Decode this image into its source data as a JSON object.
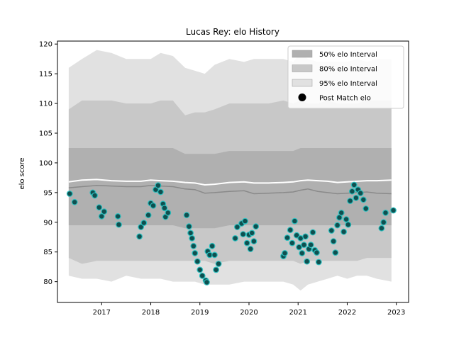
{
  "chart_data": {
    "type": "scatter",
    "title": "Lucas Rey: elo History",
    "xlabel": "",
    "ylabel": "elo score",
    "xlim": [
      2016.1,
      2023.25
    ],
    "ylim": [
      76.5,
      120.5
    ],
    "x_ticks": [
      2017,
      2018,
      2019,
      2020,
      2021,
      2022,
      2023
    ],
    "x_tick_labels": [
      "2017",
      "2018",
      "2019",
      "2020",
      "2021",
      "2022",
      "2023"
    ],
    "y_ticks": [
      80,
      85,
      90,
      95,
      100,
      105,
      110,
      115,
      120
    ],
    "y_tick_labels": [
      "80",
      "85",
      "90",
      "95",
      "100",
      "105",
      "110",
      "115",
      "120"
    ],
    "grid": false,
    "legend_position": "top-right",
    "legend": [
      {
        "label": "50% elo Interval",
        "kind": "band",
        "color": "#b0b0b0"
      },
      {
        "label": "80% elo Interval",
        "kind": "band",
        "color": "#c8c8c8"
      },
      {
        "label": "95% elo Interval",
        "kind": "band",
        "color": "#e1e1e1"
      },
      {
        "label": "Post Match elo",
        "kind": "marker",
        "color": "#000000"
      }
    ],
    "colors": {
      "band50": "#b0b0b0",
      "band80": "#c8c8c8",
      "band95": "#e1e1e1",
      "mean_line": "#8a8a8a",
      "upper_line": "#ffffff",
      "point_fill": "#0f4f4f",
      "point_edge": "#2bbfbf"
    },
    "bands_x": [
      2016.33,
      2016.6,
      2016.9,
      2017.2,
      2017.5,
      2017.8,
      2018.0,
      2018.2,
      2018.45,
      2018.7,
      2018.9,
      2019.1,
      2019.3,
      2019.6,
      2019.9,
      2020.1,
      2020.4,
      2020.7,
      2020.9,
      2021.05,
      2021.2,
      2021.4,
      2021.6,
      2021.8,
      2022.0,
      2022.2,
      2022.4,
      2022.6,
      2022.9
    ],
    "band95": {
      "upper": [
        116,
        117.5,
        119,
        118.5,
        117.5,
        117.5,
        117.5,
        118.5,
        118,
        116,
        115.5,
        115,
        116.5,
        117.5,
        117,
        117.5,
        117.5,
        117.5,
        117,
        118.5,
        117.5,
        117,
        117,
        117,
        117,
        117.5,
        117,
        117.5,
        117.5
      ],
      "lower": [
        81,
        80.5,
        80.5,
        80,
        81,
        80.5,
        80.5,
        80.5,
        80,
        80,
        80,
        79.5,
        79.5,
        79.5,
        80,
        80,
        80,
        80,
        79.5,
        78.5,
        79.5,
        80,
        80.5,
        81,
        80.5,
        81,
        81,
        80.5,
        80
      ]
    },
    "band80": {
      "upper": [
        109,
        110.5,
        110.5,
        110.5,
        110,
        110,
        110,
        110.5,
        110.5,
        108,
        108.5,
        108.5,
        109,
        110,
        110,
        110,
        110,
        110.5,
        110,
        110.5,
        110,
        110,
        110.5,
        110,
        110,
        110,
        110.5,
        110.5,
        110.5
      ],
      "lower": [
        84,
        83,
        83.5,
        83.5,
        83.5,
        83.5,
        83.5,
        83.5,
        83.5,
        83.5,
        83.5,
        83.5,
        83,
        83.5,
        83.5,
        83.5,
        83.5,
        83.5,
        83.5,
        83,
        83.5,
        83.5,
        83.5,
        83.5,
        83.5,
        83.5,
        84,
        84,
        84
      ]
    },
    "band50": {
      "upper": [
        102.5,
        102.5,
        102.5,
        102.5,
        102.5,
        102.5,
        102.5,
        102.5,
        102.5,
        101.5,
        101.5,
        101.5,
        101.5,
        102,
        102,
        102,
        102,
        102,
        102,
        102.5,
        102.5,
        102.5,
        102.5,
        102.5,
        102.5,
        102.5,
        102.5,
        102.5,
        102.5
      ],
      "lower": [
        89.5,
        89.5,
        89.5,
        89.5,
        89.5,
        89.5,
        89.5,
        89.5,
        89.5,
        89,
        89,
        89,
        89,
        89.5,
        89.5,
        89.5,
        89.5,
        89.5,
        89.5,
        89.5,
        89.5,
        89.5,
        89.5,
        89.5,
        89.5,
        89.5,
        89.5,
        89.5,
        89.5
      ]
    },
    "mean_line": [
      95.8,
      96.0,
      96.2,
      96.1,
      96.0,
      96.0,
      96.2,
      96.1,
      96.0,
      95.6,
      95.5,
      94.9,
      95.0,
      95.2,
      95.3,
      94.8,
      94.9,
      95.0,
      95.1,
      95.4,
      95.6,
      95.2,
      95.0,
      94.8,
      94.9,
      95.0,
      95.1,
      94.9,
      94.8
    ],
    "upper_line": [
      96.8,
      97.1,
      97.2,
      97.0,
      96.9,
      96.9,
      97.1,
      97.0,
      96.9,
      96.7,
      96.6,
      96.3,
      96.4,
      96.7,
      96.8,
      96.6,
      96.6,
      96.7,
      96.8,
      97.0,
      97.1,
      97.0,
      96.9,
      96.7,
      96.8,
      96.9,
      97.0,
      97.0,
      97.1
    ],
    "points": {
      "x": [
        2016.35,
        2016.45,
        2016.82,
        2016.86,
        2016.95,
        2017.0,
        2017.05,
        2017.33,
        2017.35,
        2017.77,
        2017.8,
        2017.86,
        2017.95,
        2018.0,
        2018.05,
        2018.1,
        2018.15,
        2018.2,
        2018.25,
        2018.28,
        2018.3,
        2018.35,
        2018.73,
        2018.78,
        2018.81,
        2018.84,
        2018.87,
        2018.9,
        2018.95,
        2019.0,
        2019.05,
        2019.12,
        2019.14,
        2019.16,
        2019.2,
        2019.25,
        2019.3,
        2019.33,
        2019.38,
        2019.72,
        2019.76,
        2019.85,
        2019.88,
        2019.92,
        2019.96,
        2020.0,
        2020.03,
        2020.06,
        2020.1,
        2020.14,
        2020.7,
        2020.73,
        2020.78,
        2020.84,
        2020.88,
        2020.93,
        2020.97,
        2021.02,
        2021.05,
        2021.08,
        2021.12,
        2021.15,
        2021.18,
        2021.22,
        2021.26,
        2021.3,
        2021.34,
        2021.38,
        2021.42,
        2021.68,
        2021.72,
        2021.76,
        2021.8,
        2021.84,
        2021.88,
        2021.93,
        2021.98,
        2022.02,
        2022.06,
        2022.1,
        2022.14,
        2022.18,
        2022.22,
        2022.27,
        2022.33,
        2022.38,
        2022.7,
        2022.74,
        2022.78,
        2022.94
      ],
      "y": [
        94.8,
        93.4,
        95.0,
        94.5,
        92.5,
        91.0,
        91.8,
        91.0,
        89.6,
        87.6,
        89.2,
        89.9,
        91.2,
        93.2,
        92.8,
        95.5,
        96.2,
        95.1,
        93.1,
        92.4,
        90.9,
        91.6,
        91.2,
        89.3,
        88.2,
        87.3,
        86.0,
        84.8,
        83.4,
        82.0,
        81.0,
        80.2,
        79.9,
        85.1,
        84.5,
        86.0,
        84.5,
        82.0,
        83.0,
        87.3,
        89.2,
        89.8,
        88.0,
        90.2,
        86.5,
        87.9,
        85.5,
        88.2,
        86.8,
        89.3,
        84.3,
        84.8,
        87.4,
        88.7,
        86.5,
        90.2,
        87.8,
        85.8,
        87.3,
        84.8,
        86.2,
        87.6,
        83.4,
        85.5,
        86.2,
        88.3,
        85.3,
        84.9,
        83.3,
        88.6,
        86.8,
        84.9,
        89.5,
        90.8,
        91.6,
        88.4,
        90.5,
        89.6,
        93.6,
        95.2,
        96.3,
        94.1,
        95.5,
        94.9,
        93.8,
        92.3,
        89.0,
        90.0,
        91.6,
        92.0
      ]
    }
  }
}
